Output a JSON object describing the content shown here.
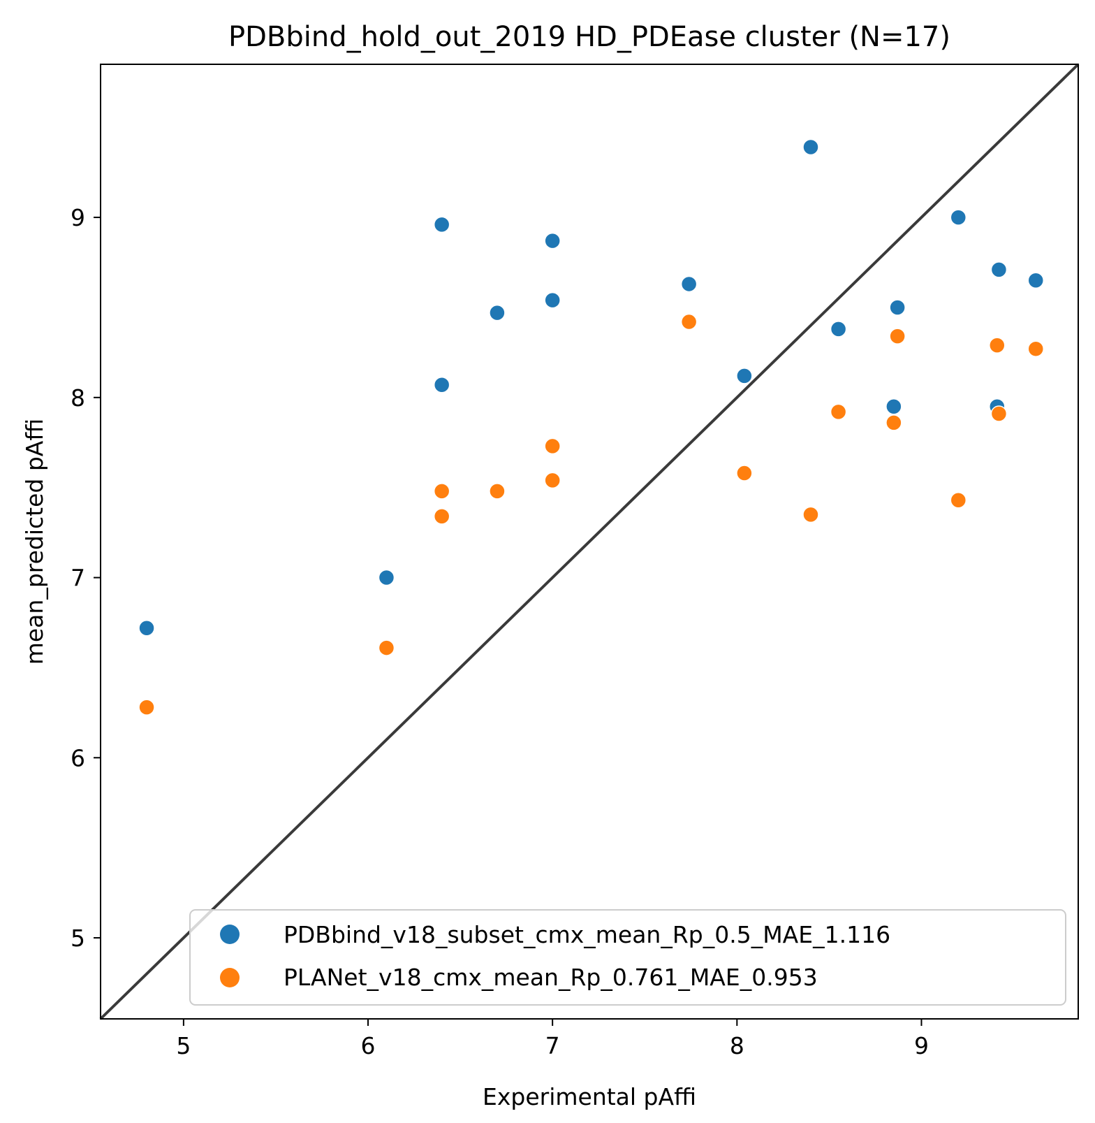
{
  "chart_data": {
    "type": "scatter",
    "title": "PDBbind_hold_out_2019 HD_PDEase cluster (N=17)",
    "xlabel": "Experimental pAffi",
    "ylabel": "mean_predicted pAffi",
    "xlim": [
      4.55,
      9.85
    ],
    "ylim": [
      4.55,
      9.85
    ],
    "xticks": [
      5,
      6,
      7,
      8,
      9
    ],
    "yticks": [
      5,
      6,
      7,
      8,
      9
    ],
    "identity_line": true,
    "legend_position": "lower right",
    "series": [
      {
        "name": "PDBbind_v18_subset_cmx_mean_Rp_0.5_MAE_1.116",
        "color": "#1f77b4",
        "points": [
          {
            "x": 4.8,
            "y": 6.72
          },
          {
            "x": 6.1,
            "y": 7.0
          },
          {
            "x": 6.4,
            "y": 8.96
          },
          {
            "x": 6.4,
            "y": 8.07
          },
          {
            "x": 6.7,
            "y": 8.47
          },
          {
            "x": 7.0,
            "y": 8.87
          },
          {
            "x": 7.0,
            "y": 8.54
          },
          {
            "x": 7.74,
            "y": 8.63
          },
          {
            "x": 8.04,
            "y": 8.12
          },
          {
            "x": 8.4,
            "y": 9.39
          },
          {
            "x": 8.55,
            "y": 8.38
          },
          {
            "x": 8.85,
            "y": 7.95
          },
          {
            "x": 8.87,
            "y": 8.5
          },
          {
            "x": 9.2,
            "y": 9.0
          },
          {
            "x": 9.41,
            "y": 7.95
          },
          {
            "x": 9.42,
            "y": 8.71
          },
          {
            "x": 9.62,
            "y": 8.65
          }
        ]
      },
      {
        "name": "PLANet_v18_cmx_mean_Rp_0.761_MAE_0.953",
        "color": "#ff7f0e",
        "points": [
          {
            "x": 4.8,
            "y": 6.28
          },
          {
            "x": 6.1,
            "y": 6.61
          },
          {
            "x": 6.4,
            "y": 7.48
          },
          {
            "x": 6.4,
            "y": 7.34
          },
          {
            "x": 6.7,
            "y": 7.48
          },
          {
            "x": 7.0,
            "y": 7.73
          },
          {
            "x": 7.0,
            "y": 7.54
          },
          {
            "x": 7.74,
            "y": 8.42
          },
          {
            "x": 8.04,
            "y": 7.58
          },
          {
            "x": 8.4,
            "y": 7.35
          },
          {
            "x": 8.55,
            "y": 7.92
          },
          {
            "x": 8.85,
            "y": 7.86
          },
          {
            "x": 8.87,
            "y": 8.34
          },
          {
            "x": 9.2,
            "y": 7.43
          },
          {
            "x": 9.41,
            "y": 8.29
          },
          {
            "x": 9.42,
            "y": 7.91
          },
          {
            "x": 9.62,
            "y": 8.27
          }
        ]
      }
    ]
  }
}
